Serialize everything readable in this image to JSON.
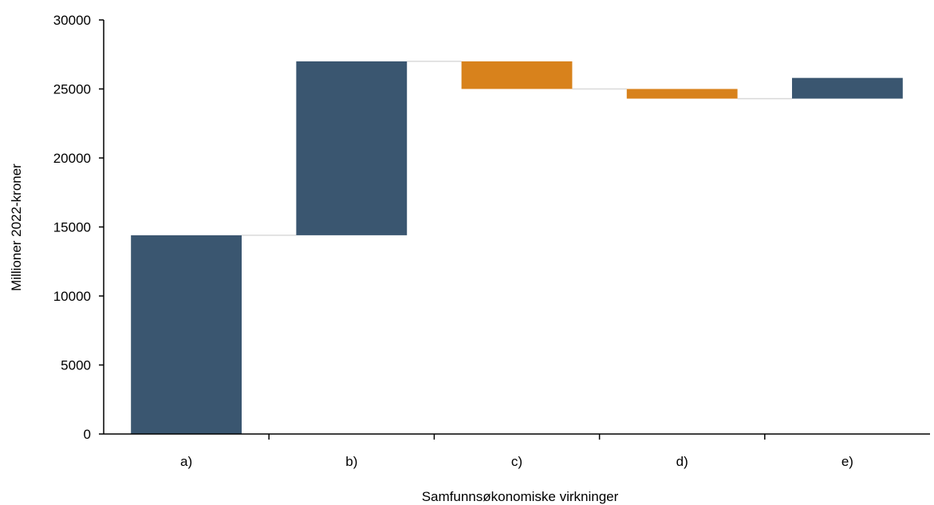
{
  "chart_data": {
    "type": "bar",
    "subtype": "waterfall",
    "title": "",
    "xlabel": "Samfunnsøkonomiske virkninger",
    "ylabel": "Millioner 2022-kroner",
    "ylim": [
      0,
      30000
    ],
    "yticks": [
      0,
      5000,
      10000,
      15000,
      20000,
      25000,
      30000
    ],
    "categories": [
      "a)",
      "b)",
      "c)",
      "d)",
      "e)"
    ],
    "bars": [
      {
        "category": "a)",
        "start": 0,
        "end": 14400,
        "direction": "increase"
      },
      {
        "category": "b)",
        "start": 14400,
        "end": 27000,
        "direction": "increase"
      },
      {
        "category": "c)",
        "start": 27000,
        "end": 25000,
        "direction": "decrease"
      },
      {
        "category": "d)",
        "start": 25000,
        "end": 24300,
        "direction": "decrease"
      },
      {
        "category": "e)",
        "start": 24300,
        "end": 25800,
        "direction": "increase"
      }
    ],
    "colors": {
      "increase": "#3a5670",
      "decrease": "#d8821c",
      "connector": "#d9d9d9",
      "axis": "#000000"
    },
    "grid": false,
    "legend": "none"
  }
}
